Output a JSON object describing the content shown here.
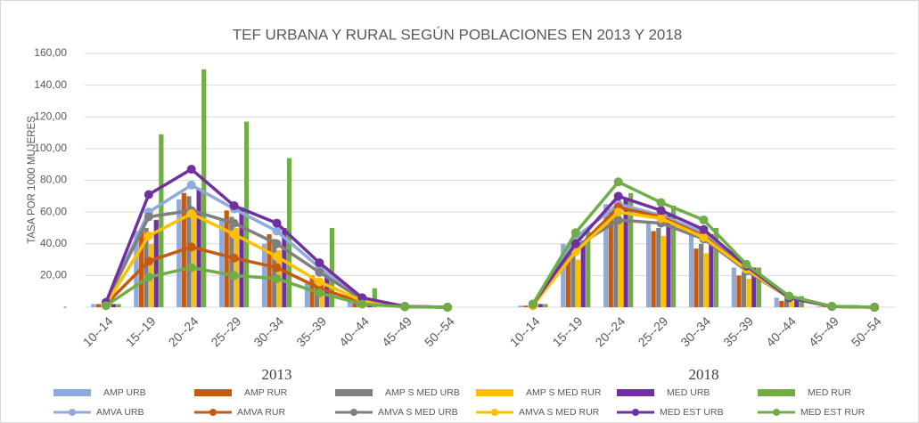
{
  "chart_data": {
    "type": "combo",
    "title": "TEF URBANA Y RURAL SEGÚN POBLACIONES EN 2013 Y 2018",
    "y_label": "TASA POR 1000 MUJERES",
    "categories": [
      "10--14",
      "15--19",
      "20--24",
      "25--29",
      "30--34",
      "35--39",
      "40--44",
      "45--49",
      "50--54",
      null,
      "10--14",
      "15--19",
      "20--24",
      "25--29",
      "30--34",
      "35--39",
      "40--44",
      "45--49",
      "50--54"
    ],
    "category_groups": [
      "2013",
      "2018"
    ],
    "ylim": [
      0,
      160
    ],
    "yticks": [
      {
        "value": 0,
        "label": "-"
      },
      {
        "value": 20,
        "label": "20,00"
      },
      {
        "value": 40,
        "label": "40,00"
      },
      {
        "value": 60,
        "label": "60,00"
      },
      {
        "value": 80,
        "label": "80,00"
      },
      {
        "value": 100,
        "label": "100,00"
      },
      {
        "value": 120,
        "label": "120,00"
      },
      {
        "value": 140,
        "label": "140,00"
      },
      {
        "value": 160,
        "label": "160,00"
      }
    ],
    "grid": true,
    "legend": "bottom",
    "series": [
      {
        "name": "AMP URB",
        "type": "bar",
        "color": "#8faadc",
        "values": [
          2,
          48,
          68,
          55,
          40,
          15,
          4,
          0.5,
          0,
          null,
          1,
          40,
          65,
          53,
          48,
          25,
          6,
          0.5,
          0
        ]
      },
      {
        "name": "AMP RUR",
        "type": "bar",
        "color": "#c55a11",
        "values": [
          2,
          48,
          72,
          61,
          46,
          20,
          5,
          0.5,
          0,
          null,
          1,
          35,
          62,
          48,
          37,
          20,
          4,
          0.4,
          0
        ]
      },
      {
        "name": "AMP S MED URB",
        "type": "bar",
        "color": "#7f7f7f",
        "values": [
          2,
          50,
          70,
          57,
          43,
          18,
          4,
          0.5,
          0,
          null,
          1,
          38,
          58,
          50,
          40,
          22,
          5,
          0.5,
          0
        ]
      },
      {
        "name": "AMP S MED RUR",
        "type": "bar",
        "color": "#ffc000",
        "values": [
          2,
          40,
          62,
          50,
          36,
          14,
          3,
          0.4,
          0,
          null,
          1,
          30,
          55,
          45,
          34,
          18,
          4,
          0.4,
          0
        ]
      },
      {
        "name": "MED URB",
        "type": "bar",
        "color": "#7030a0",
        "values": [
          2,
          55,
          75,
          63,
          50,
          22,
          5,
          0.5,
          0,
          null,
          2,
          42,
          68,
          58,
          46,
          25,
          6,
          0.5,
          0
        ]
      },
      {
        "name": "MED RUR",
        "type": "bar",
        "color": "#70ad47",
        "values": [
          2,
          109,
          150,
          117,
          94,
          50,
          12,
          1,
          0,
          null,
          2,
          48,
          72,
          64,
          50,
          25,
          7,
          0.6,
          0
        ]
      },
      {
        "name": "AMVA URB",
        "type": "line",
        "color": "#8faadc",
        "values": [
          3,
          60,
          77,
          62,
          48,
          25,
          5,
          0.5,
          0,
          null,
          2,
          44,
          65,
          58,
          47,
          25,
          6,
          0.5,
          0
        ]
      },
      {
        "name": "AMVA RUR",
        "type": "line",
        "color": "#c55a11",
        "values": [
          2,
          29,
          38,
          31,
          25,
          12,
          3,
          0.3,
          0,
          null,
          1,
          36,
          63,
          57,
          45,
          24,
          6,
          0.5,
          0
        ]
      },
      {
        "name": "AMVA S MED URB",
        "type": "line",
        "color": "#7f7f7f",
        "values": [
          3,
          57,
          61,
          53,
          40,
          22,
          5,
          0.5,
          0,
          null,
          2,
          38,
          55,
          53,
          43,
          23,
          6,
          0.5,
          0
        ]
      },
      {
        "name": "AMVA S MED RUR",
        "type": "line",
        "color": "#ffc000",
        "values": [
          2,
          45,
          59,
          46,
          32,
          16,
          4,
          0.4,
          0,
          null,
          1,
          35,
          60,
          56,
          44,
          24,
          6,
          0.5,
          0
        ]
      },
      {
        "name": "MED EST URB",
        "type": "line",
        "color": "#7030a0",
        "values": [
          3,
          71,
          87,
          64,
          53,
          28,
          6,
          0.5,
          0,
          null,
          2,
          40,
          70,
          61,
          49,
          26,
          6,
          0.5,
          0
        ]
      },
      {
        "name": "MED EST RUR",
        "type": "line",
        "color": "#70ad47",
        "values": [
          1,
          19,
          25,
          20,
          18,
          9,
          2,
          0.3,
          0,
          null,
          2,
          47,
          79,
          66,
          55,
          27,
          7,
          0.6,
          0
        ]
      }
    ]
  }
}
